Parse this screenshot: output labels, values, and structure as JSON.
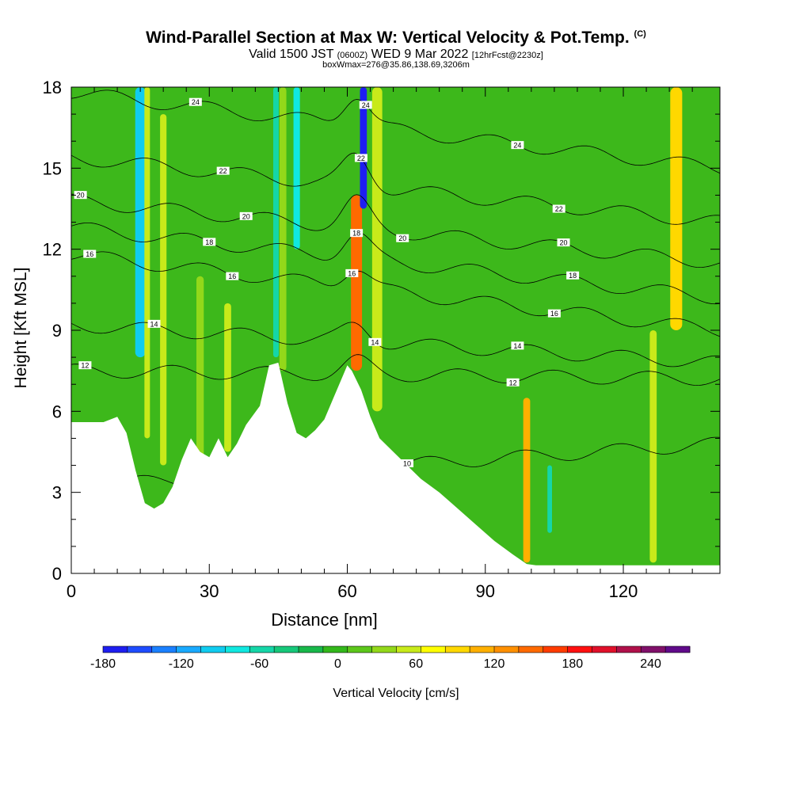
{
  "header": {
    "title": "Wind-Parallel Section at Max W: Vertical Velocity & Pot.Temp.",
    "title_mark": "(C)",
    "valid_prefix": "Valid 1500 JST",
    "valid_zulu": "(0600Z)",
    "valid_date": "WED 9 Mar 2022",
    "forecast": "[12hrFcst@2230z]",
    "box_info": "boxWmax=276@35.86,138.69,3206m"
  },
  "chart_data": {
    "type": "heatmap",
    "xlabel": "Distance [nm]",
    "ylabel": "Height [Kft MSL]",
    "xlim": [
      0,
      141
    ],
    "ylim": [
      0,
      18
    ],
    "x_ticks": [
      "0",
      "30",
      "60",
      "90",
      "120"
    ],
    "y_ticks": [
      "0",
      "3",
      "6",
      "9",
      "12",
      "15",
      "18"
    ],
    "colorbar": {
      "label": "Vertical Velocity [cm/s]",
      "min": -180,
      "max": 270,
      "tick_labels": [
        "-180",
        "-120",
        "-60",
        "0",
        "60",
        "120",
        "180",
        "240"
      ],
      "colors": [
        "#1e1ef0",
        "#1e4cff",
        "#1a80ff",
        "#19aaff",
        "#10ccf0",
        "#10e8e0",
        "#15d6a8",
        "#16c87a",
        "#18b84a",
        "#33b81b",
        "#5cc71a",
        "#93d81a",
        "#c8ea1a",
        "#ffff00",
        "#ffd800",
        "#ffb000",
        "#ff9000",
        "#ff6a00",
        "#ff3c00",
        "#ff1010",
        "#e0102a",
        "#b0104a",
        "#80106a",
        "#600a8a"
      ]
    },
    "terrain": [
      [
        0,
        5.6
      ],
      [
        7,
        5.6
      ],
      [
        10,
        5.8
      ],
      [
        12,
        5.2
      ],
      [
        14,
        3.8
      ],
      [
        16,
        2.6
      ],
      [
        18,
        2.4
      ],
      [
        20,
        2.6
      ],
      [
        22,
        3.2
      ],
      [
        24,
        4.2
      ],
      [
        26,
        5.0
      ],
      [
        28,
        4.5
      ],
      [
        30,
        4.3
      ],
      [
        32,
        5.0
      ],
      [
        34,
        4.3
      ],
      [
        36,
        4.8
      ],
      [
        38,
        5.5
      ],
      [
        41,
        6.2
      ],
      [
        43,
        7.7
      ],
      [
        45,
        7.8
      ],
      [
        47,
        6.3
      ],
      [
        49,
        5.2
      ],
      [
        51,
        5.0
      ],
      [
        53,
        5.3
      ],
      [
        55,
        5.7
      ],
      [
        57,
        6.5
      ],
      [
        59,
        7.3
      ],
      [
        60,
        7.7
      ],
      [
        61,
        7.5
      ],
      [
        63,
        6.8
      ],
      [
        65,
        5.8
      ],
      [
        67,
        5.0
      ],
      [
        70,
        4.5
      ],
      [
        73,
        4.0
      ],
      [
        76,
        3.5
      ],
      [
        80,
        3.0
      ],
      [
        84,
        2.4
      ],
      [
        88,
        1.8
      ],
      [
        92,
        1.2
      ],
      [
        96,
        0.7
      ],
      [
        99,
        0.35
      ],
      [
        101,
        0.3
      ],
      [
        141,
        0.3
      ]
    ],
    "vv_columns": [
      {
        "x": 15.0,
        "w": 2.2,
        "v": -90,
        "ztop": 18,
        "zbot": 8
      },
      {
        "x": 16.5,
        "w": 1.2,
        "v": 55,
        "ztop": 18,
        "zbot": 5
      },
      {
        "x": 20.0,
        "w": 1.4,
        "v": 60,
        "ztop": 17,
        "zbot": 4
      },
      {
        "x": 28.0,
        "w": 1.6,
        "v": 40,
        "ztop": 11,
        "zbot": 4
      },
      {
        "x": 34.0,
        "w": 1.5,
        "v": 50,
        "ztop": 10,
        "zbot": 4.5
      },
      {
        "x": 44.5,
        "w": 1.2,
        "v": -60,
        "ztop": 18,
        "zbot": 8
      },
      {
        "x": 46.0,
        "w": 1.5,
        "v": 40,
        "ztop": 18,
        "zbot": 7.5
      },
      {
        "x": 49.0,
        "w": 1.4,
        "v": -70,
        "ztop": 18,
        "zbot": 12
      },
      {
        "x": 62.0,
        "w": 1.1,
        "v": 270,
        "ztop": 13,
        "zbot": 8.2
      },
      {
        "x": 62.0,
        "w": 2.4,
        "v": 140,
        "ztop": 14,
        "zbot": 7.5
      },
      {
        "x": 63.5,
        "w": 1.5,
        "v": -170,
        "ztop": 18,
        "zbot": 13.5
      },
      {
        "x": 66.5,
        "w": 2.2,
        "v": 50,
        "ztop": 18,
        "zbot": 6
      },
      {
        "x": 99.0,
        "w": 1.5,
        "v": 110,
        "ztop": 6.5,
        "zbot": 0.4
      },
      {
        "x": 104.0,
        "w": 1.0,
        "v": -50,
        "ztop": 4,
        "zbot": 1.5
      },
      {
        "x": 126.5,
        "w": 1.5,
        "v": 60,
        "ztop": 9,
        "zbot": 0.4
      },
      {
        "x": 131.5,
        "w": 2.6,
        "v": 90,
        "ztop": 18,
        "zbot": 9
      }
    ],
    "theta_levels": [
      "10",
      "12",
      "14",
      "16",
      "18",
      "20",
      "22",
      "24"
    ],
    "theta_contours": [
      {
        "label": "10",
        "y_left": 3.2,
        "y_right": 4.8,
        "label_x": 73,
        "crest_x": 62,
        "crest_amp": 0.6
      },
      {
        "label": "12",
        "y_left": 7.5,
        "y_right": 7.2,
        "label_x": 3,
        "crest_x": 62,
        "crest_amp": 0.5
      },
      {
        "label": "12",
        "y_left": 7.5,
        "y_right": 7.2,
        "label_x": 96,
        "crest_x": 62,
        "crest_amp": 0.5
      },
      {
        "label": "14",
        "y_left": 9.2,
        "y_right": 7.8,
        "label_x": 18,
        "crest_x": 62,
        "crest_amp": 0.6
      },
      {
        "label": "14",
        "y_left": 9.2,
        "y_right": 7.8,
        "label_x": 66,
        "crest_x": 62,
        "crest_amp": 0.6
      },
      {
        "label": "14",
        "y_left": 9.2,
        "y_right": 7.8,
        "label_x": 97,
        "crest_x": 62,
        "crest_amp": 0.6
      },
      {
        "label": "16",
        "y_left": 11.8,
        "y_right": 9.0,
        "label_x": 4,
        "crest_x": 62,
        "crest_amp": 0.8
      },
      {
        "label": "16",
        "y_left": 11.8,
        "y_right": 9.0,
        "label_x": 35,
        "crest_x": 62,
        "crest_amp": 0.8
      },
      {
        "label": "16",
        "y_left": 11.8,
        "y_right": 9.0,
        "label_x": 61,
        "crest_x": 62,
        "crest_amp": 0.8
      },
      {
        "label": "16",
        "y_left": 11.8,
        "y_right": 9.0,
        "label_x": 105,
        "crest_x": 62,
        "crest_amp": 0.8
      },
      {
        "label": "18",
        "y_left": 12.8,
        "y_right": 10.2,
        "label_x": 30,
        "crest_x": 62,
        "crest_amp": 0.9
      },
      {
        "label": "18",
        "y_left": 12.8,
        "y_right": 10.2,
        "label_x": 62,
        "crest_x": 62,
        "crest_amp": 0.9
      },
      {
        "label": "18",
        "y_left": 12.8,
        "y_right": 10.2,
        "label_x": 109,
        "crest_x": 62,
        "crest_amp": 0.9
      },
      {
        "label": "20",
        "y_left": 13.8,
        "y_right": 11.5,
        "label_x": 2,
        "crest_x": 62,
        "crest_amp": 1.0
      },
      {
        "label": "20",
        "y_left": 13.8,
        "y_right": 11.5,
        "label_x": 38,
        "crest_x": 62,
        "crest_amp": 1.0
      },
      {
        "label": "20",
        "y_left": 13.8,
        "y_right": 11.5,
        "label_x": 72,
        "crest_x": 62,
        "crest_amp": 1.0
      },
      {
        "label": "20",
        "y_left": 13.8,
        "y_right": 11.5,
        "label_x": 107,
        "crest_x": 62,
        "crest_amp": 1.0
      },
      {
        "label": "22",
        "y_left": 15.4,
        "y_right": 13.0,
        "label_x": 33,
        "crest_x": 62,
        "crest_amp": 1.1
      },
      {
        "label": "22",
        "y_left": 15.4,
        "y_right": 13.0,
        "label_x": 63,
        "crest_x": 62,
        "crest_amp": 1.1
      },
      {
        "label": "22",
        "y_left": 15.4,
        "y_right": 13.0,
        "label_x": 106,
        "crest_x": 62,
        "crest_amp": 1.1
      },
      {
        "label": "24",
        "y_left": 17.8,
        "y_right": 15.0,
        "label_x": 27,
        "crest_x": 62,
        "crest_amp": 1.2
      },
      {
        "label": "24",
        "y_left": 17.8,
        "y_right": 15.0,
        "label_x": 64,
        "crest_x": 62,
        "crest_amp": 1.2
      },
      {
        "label": "24",
        "y_left": 17.8,
        "y_right": 15.0,
        "label_x": 97,
        "crest_x": 62,
        "crest_amp": 1.2
      }
    ],
    "colors": {
      "background": "#ffffff",
      "field_base": "#3db81b",
      "contour": "#000000",
      "terrain": "#ffffff"
    }
  }
}
